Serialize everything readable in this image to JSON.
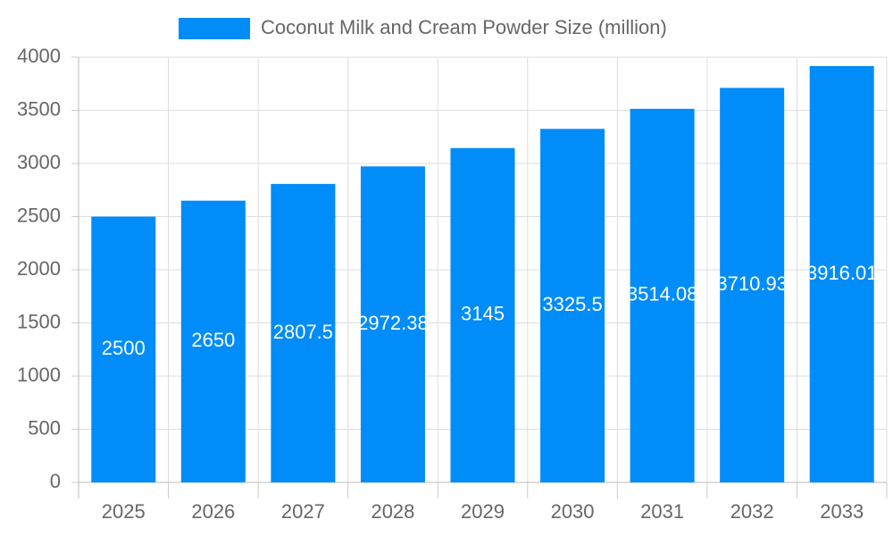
{
  "chart_data": {
    "type": "bar",
    "categories": [
      "2025",
      "2026",
      "2027",
      "2028",
      "2029",
      "2030",
      "2031",
      "2032",
      "2033"
    ],
    "series": [
      {
        "name": "Coconut Milk and Cream Powder Size (million)",
        "color": "#008cf9",
        "values": [
          2500,
          2650,
          2807.5,
          2972.38,
          3145,
          3325.5,
          3514.08,
          3710.93,
          3916.01
        ]
      }
    ],
    "ylim": [
      0,
      4000
    ],
    "yticks": [
      0,
      500,
      1000,
      1500,
      2000,
      2500,
      3000,
      3500,
      4000
    ],
    "grid": true,
    "legend": "top"
  }
}
